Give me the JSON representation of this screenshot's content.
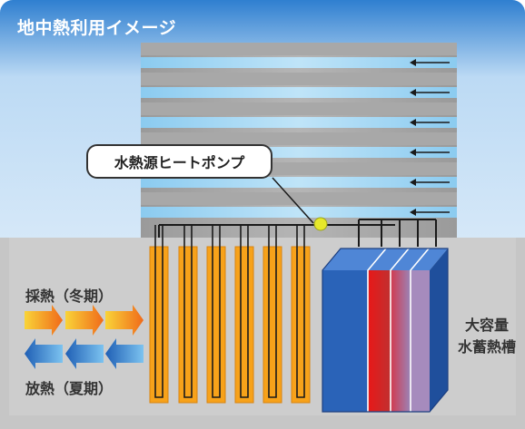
{
  "title": "地中熱利用イメージ",
  "heat_pump_label": "水熱源ヒートポンプ",
  "winter_label": "採熱（冬期）",
  "summer_label": "放熱（夏期）",
  "tank_label_line1": "大容量",
  "tank_label_line2": "水蓄熱槽",
  "colors": {
    "header_blue": "#2f7fd0",
    "sky_light": "#e8f2fc",
    "ground": "#c6c6c6",
    "building_gray": "#a6a6a6",
    "floor_blue": "#9fd4f2",
    "pipe_orange": "#f7a21a",
    "tank_blue": "#2a63b8",
    "tank_red": "#e02020",
    "tank_purple": "#a97fb8",
    "pump_dot": "#e6e82a",
    "arrow_orange": "#f48a1b",
    "arrow_blue": "#2b7fd4"
  }
}
